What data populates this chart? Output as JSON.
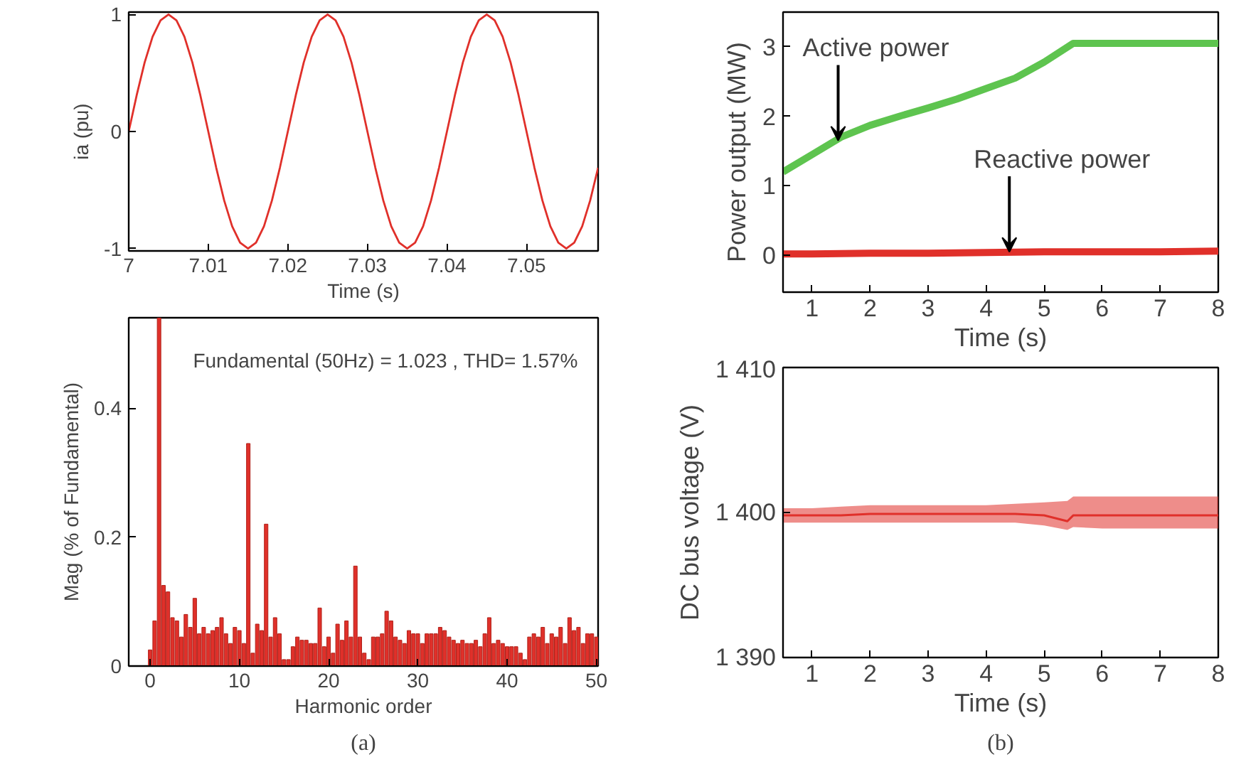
{
  "chart_data": [
    {
      "type": "line",
      "xlabel": "Time (s)",
      "ylabel": "ia (pu)",
      "xlim": [
        7,
        7.059
      ],
      "ylim": [
        -1.02,
        1.02
      ],
      "xticks": [
        7,
        7.01,
        7.02,
        7.03,
        7.04,
        7.05
      ],
      "yticks": [
        -1,
        0,
        1
      ],
      "series": [
        {
          "color": "#e0302a",
          "x": [
            7.0,
            7.001,
            7.002,
            7.003,
            7.004,
            7.005,
            7.006,
            7.007,
            7.008,
            7.009,
            7.01,
            7.011,
            7.012,
            7.013,
            7.014,
            7.015,
            7.016,
            7.017,
            7.018,
            7.019,
            7.02,
            7.021,
            7.022,
            7.023,
            7.024,
            7.025,
            7.026,
            7.027,
            7.028,
            7.029,
            7.03,
            7.031,
            7.032,
            7.033,
            7.034,
            7.035,
            7.036,
            7.037,
            7.038,
            7.039,
            7.04,
            7.041,
            7.042,
            7.043,
            7.044,
            7.045,
            7.046,
            7.047,
            7.048,
            7.049,
            7.05,
            7.051,
            7.052,
            7.053,
            7.054,
            7.055,
            7.056,
            7.057,
            7.058,
            7.059
          ],
          "values": [
            0,
            0.31,
            0.59,
            0.81,
            0.95,
            1,
            0.95,
            0.81,
            0.59,
            0.31,
            0,
            -0.31,
            -0.59,
            -0.81,
            -0.95,
            -1,
            -0.95,
            -0.81,
            -0.59,
            -0.31,
            0,
            0.31,
            0.59,
            0.81,
            0.95,
            1,
            0.95,
            0.81,
            0.59,
            0.31,
            0,
            -0.31,
            -0.59,
            -0.81,
            -0.95,
            -1,
            -0.95,
            -0.81,
            -0.59,
            -0.31,
            0,
            0.31,
            0.59,
            0.81,
            0.95,
            1,
            0.95,
            0.81,
            0.59,
            0.31,
            0,
            -0.31,
            -0.59,
            -0.81,
            -0.95,
            -1,
            -0.95,
            -0.81,
            -0.59,
            -0.31
          ]
        }
      ]
    },
    {
      "type": "bar",
      "title": "Fundamental (50Hz) = 1.023 , THD= 1.57%",
      "xlabel": "Harmonic order",
      "ylabel": "Mag (% of Fundamental)",
      "xlim": [
        -2.4,
        50.2
      ],
      "ylim": [
        0,
        0.54
      ],
      "xticks": [
        0,
        10,
        20,
        30,
        40,
        50
      ],
      "yticks": [
        0,
        0.2,
        0.4
      ],
      "annotations": [
        "(a)"
      ],
      "x": [
        0,
        0.5,
        1,
        1.5,
        2,
        2.5,
        3,
        3.5,
        4,
        4.5,
        5,
        5.5,
        6,
        6.5,
        7,
        7.5,
        8,
        8.5,
        9,
        9.5,
        10,
        10.5,
        11,
        11.5,
        12,
        12.5,
        13,
        13.5,
        14,
        14.5,
        15,
        15.5,
        16,
        16.5,
        17,
        17.5,
        18,
        18.5,
        19,
        19.5,
        20,
        20.5,
        21,
        21.5,
        22,
        22.5,
        23,
        23.5,
        24,
        24.5,
        25,
        25.5,
        26,
        26.5,
        27,
        27.5,
        28,
        28.5,
        29,
        29.5,
        30,
        30.5,
        31,
        31.5,
        32,
        32.5,
        33,
        33.5,
        34,
        34.5,
        35,
        35.5,
        36,
        36.5,
        37,
        37.5,
        38,
        38.5,
        39,
        39.5,
        40,
        40.5,
        41,
        41.5,
        42,
        42.5,
        43,
        43.5,
        44,
        44.5,
        45,
        45.5,
        46,
        46.5,
        47,
        47.5,
        48,
        48.5,
        49,
        49.5,
        50
      ],
      "series": [
        {
          "color": "#e0302a",
          "values": [
            0.025,
            0.07,
            0.54,
            0.125,
            0.115,
            0.075,
            0.07,
            0.045,
            0.08,
            0.06,
            0.105,
            0.05,
            0.06,
            0.05,
            0.055,
            0.06,
            0.075,
            0.05,
            0.035,
            0.06,
            0.055,
            0.035,
            0.345,
            0.02,
            0.065,
            0.055,
            0.22,
            0.045,
            0.075,
            0.05,
            0.01,
            0.01,
            0.03,
            0.045,
            0.04,
            0.04,
            0.035,
            0.035,
            0.09,
            0.03,
            0.045,
            0.02,
            0.065,
            0.04,
            0.07,
            0.045,
            0.155,
            0.045,
            0.02,
            0.01,
            0.045,
            0.045,
            0.05,
            0.085,
            0.07,
            0.045,
            0.04,
            0.035,
            0.055,
            0.05,
            0.05,
            0.035,
            0.05,
            0.05,
            0.05,
            0.06,
            0.055,
            0.045,
            0.04,
            0.035,
            0.04,
            0.035,
            0.035,
            0.04,
            0.03,
            0.05,
            0.075,
            0.035,
            0.04,
            0.035,
            0.03,
            0.03,
            0.03,
            0.02,
            0.01,
            0.045,
            0.05,
            0.045,
            0.06,
            0.035,
            0.05,
            0.045,
            0.06,
            0.035,
            0.075,
            0.055,
            0.06,
            0.035,
            0.05,
            0.05,
            0.045
          ]
        }
      ]
    },
    {
      "type": "line",
      "xlabel": "Time (s)",
      "ylabel": "Power output (MW)",
      "xlim": [
        0.5,
        8
      ],
      "ylim": [
        -0.53,
        3.5
      ],
      "xticks": [
        1,
        2,
        3,
        4,
        5,
        6,
        7,
        8
      ],
      "yticks": [
        0,
        1,
        2,
        3
      ],
      "annotations": [
        {
          "text": "Active power",
          "x": 1.45,
          "y": 1.65
        },
        {
          "text": "Reactive power",
          "x": 4.4,
          "y": 0.05
        }
      ],
      "series": [
        {
          "color": "#5ec44f",
          "x": [
            0.5,
            1,
            1.5,
            2,
            2.5,
            3,
            3.5,
            4,
            4.5,
            5,
            5.5,
            6,
            7,
            8
          ],
          "values": [
            1.2,
            1.45,
            1.7,
            1.87,
            2.0,
            2.12,
            2.25,
            2.4,
            2.55,
            2.78,
            3.05,
            3.05,
            3.05,
            3.05
          ]
        },
        {
          "color": "#e0302a",
          "x": [
            0.5,
            1,
            2,
            3,
            4,
            5,
            6,
            7,
            8
          ],
          "values": [
            0.02,
            0.02,
            0.03,
            0.03,
            0.04,
            0.05,
            0.05,
            0.05,
            0.06
          ]
        }
      ]
    },
    {
      "type": "line",
      "xlabel": "Time (s)",
      "ylabel": "DC bus voltage (V)",
      "xlim": [
        0.5,
        8
      ],
      "ylim": [
        1390,
        1410
      ],
      "xticks": [
        1,
        2,
        3,
        4,
        5,
        6,
        7,
        8
      ],
      "yticks": [
        {
          "value": 1390,
          "label": "1 390"
        },
        {
          "value": 1400,
          "label": "1 400"
        },
        {
          "value": 1410,
          "label": "1 410"
        }
      ],
      "annotations": [
        "(b)"
      ],
      "series": [
        {
          "color": "#e0302a",
          "x": [
            0.5,
            1,
            1.5,
            2,
            2.5,
            3,
            3.5,
            4,
            4.5,
            5,
            5.4,
            5.5,
            6,
            6.5,
            7,
            7.5,
            8
          ],
          "values": [
            1399.8,
            1399.8,
            1399.8,
            1399.9,
            1399.9,
            1399.9,
            1399.9,
            1399.9,
            1399.9,
            1399.8,
            1399.4,
            1399.8,
            1399.8,
            1399.8,
            1399.8,
            1399.8,
            1399.8
          ],
          "lower": [
            1399.3,
            1399.3,
            1399.3,
            1399.3,
            1399.3,
            1399.3,
            1399.3,
            1399.3,
            1399.3,
            1399.1,
            1398.8,
            1399.0,
            1398.9,
            1398.9,
            1398.9,
            1398.9,
            1398.9
          ],
          "upper": [
            1400.3,
            1400.3,
            1400.4,
            1400.5,
            1400.5,
            1400.5,
            1400.5,
            1400.5,
            1400.6,
            1400.7,
            1400.8,
            1401.1,
            1401.1,
            1401.1,
            1401.1,
            1401.1,
            1401.1
          ]
        }
      ]
    }
  ]
}
